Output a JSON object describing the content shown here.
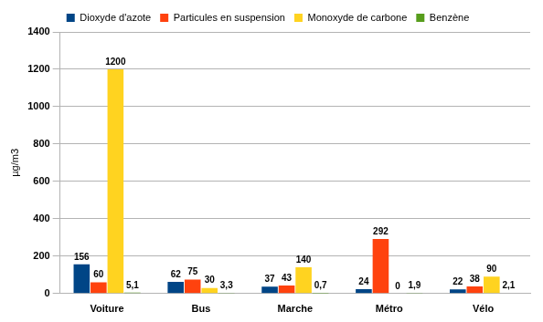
{
  "chart_data": {
    "type": "bar",
    "y_label": "µg/m3",
    "categories": [
      "Voiture",
      "Bus",
      "Marche",
      "Métro",
      "Vélo"
    ],
    "series": [
      {
        "name": "Dioxyde d'azote",
        "color": "#004586",
        "values": [
          156,
          62,
          37,
          24,
          22
        ]
      },
      {
        "name": "Particules en suspension",
        "color": "#ff420e",
        "values": [
          60,
          75,
          43,
          292,
          38
        ]
      },
      {
        "name": "Monoxyde de carbone",
        "color": "#ffd320",
        "values": [
          1200,
          30,
          140,
          0,
          90
        ]
      },
      {
        "name": "Benzène",
        "color": "#579d1c",
        "values": [
          5.1,
          3.3,
          0.7,
          1.9,
          2.1
        ],
        "value_labels": [
          "5,1",
          "3,3",
          "0,7",
          "1,9",
          "2,1"
        ]
      }
    ],
    "ylim": [
      0,
      1400
    ],
    "yticks": [
      0,
      200,
      400,
      600,
      800,
      1000,
      1200,
      1400
    ],
    "grid": true,
    "legend": "top",
    "data_labels": true
  }
}
